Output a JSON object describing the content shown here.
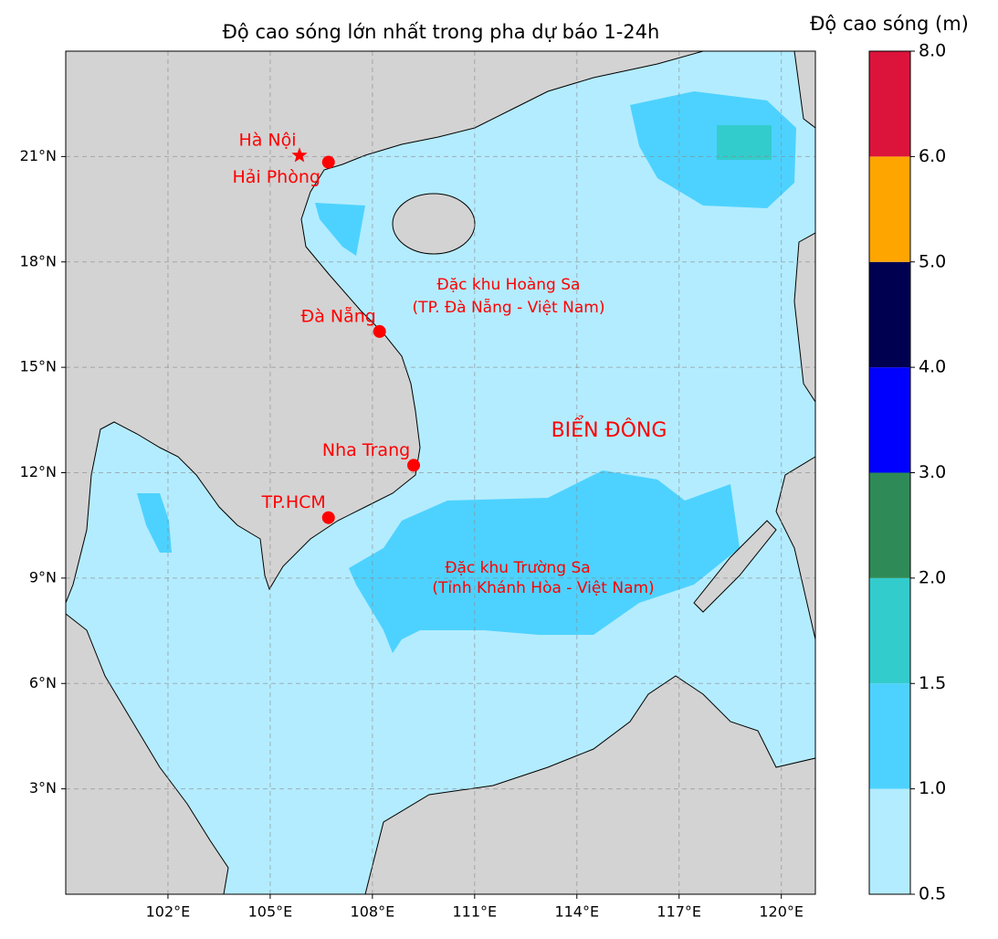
{
  "chart_data": {
    "type": "map",
    "title": "Độ cao sóng lớn nhất trong pha dự báo 1-24h",
    "xlim": [
      99,
      121
    ],
    "ylim": [
      0,
      24
    ],
    "xticks": [
      {
        "value": 102,
        "label": "102°E"
      },
      {
        "value": 105,
        "label": "105°E"
      },
      {
        "value": 108,
        "label": "108°E"
      },
      {
        "value": 111,
        "label": "111°E"
      },
      {
        "value": 114,
        "label": "114°E"
      },
      {
        "value": 117,
        "label": "117°E"
      },
      {
        "value": 120,
        "label": "120°E"
      }
    ],
    "yticks": [
      {
        "value": 3,
        "label": "3°N"
      },
      {
        "value": 6,
        "label": "6°N"
      },
      {
        "value": 9,
        "label": "9°N"
      },
      {
        "value": 12,
        "label": "12°N"
      },
      {
        "value": 15,
        "label": "15°N"
      },
      {
        "value": 18,
        "label": "18°N"
      },
      {
        "value": 21,
        "label": "21°N"
      }
    ],
    "grid": true,
    "cities": [
      {
        "name": "Hà Nội",
        "lon": 105.86,
        "lat": 21.03,
        "marker": "star"
      },
      {
        "name": "Hải Phòng",
        "lon": 106.71,
        "lat": 20.84,
        "marker": "circle"
      },
      {
        "name": "Đà Nẵng",
        "lon": 108.21,
        "lat": 16.02,
        "marker": "circle"
      },
      {
        "name": "Nha Trang",
        "lon": 109.21,
        "lat": 12.21,
        "marker": "circle"
      },
      {
        "name": "TP.HCM",
        "lon": 106.71,
        "lat": 10.72,
        "marker": "circle"
      }
    ],
    "marker_color": "#ff0000",
    "annotations": [
      "Đặc khu Hoàng Sa",
      "(TP. Đà Nẵng - Việt Nam)",
      "BIỂN ĐÔNG",
      "Đặc khu Trường Sa",
      "(Tỉnh Khánh Hòa - Việt Nam)"
    ],
    "colorbar": {
      "label": "Độ cao sóng (m)",
      "ticks": [
        0.5,
        {
          "value": 1,
          "label": "1.0"
        },
        {
          "value": 1.5,
          "label": "1.5"
        },
        {
          "value": 2,
          "label": "2.0"
        },
        {
          "value": 3,
          "label": "3.0"
        },
        {
          "value": 4,
          "label": "4.0"
        },
        {
          "value": 5,
          "label": "5.0"
        },
        {
          "value": 6,
          "label": "6.0"
        },
        {
          "value": 8,
          "label": "8.0"
        }
      ],
      "colors": [
        "#b3ecff",
        "#4dd2ff",
        "#33cccc",
        "#2e8b57",
        "#0000ff",
        "#000050",
        "#ffa500",
        "#dc143c"
      ]
    }
  }
}
